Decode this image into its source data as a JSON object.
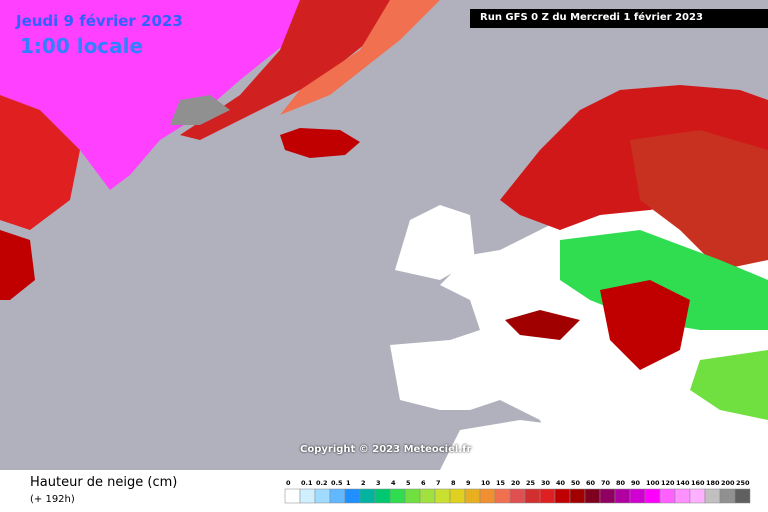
{
  "header": {
    "date": "Jeudi 9 février 2023",
    "time": "1:00 locale",
    "run": "Run GFS 0 Z du Mercredi 1 février 2023"
  },
  "copyright": "Copyright © 2023 Meteociel.fr",
  "legend": {
    "title": "Hauteur de neige (cm)",
    "subtitle": "(+ 192h)",
    "labels": [
      "0",
      "0.1",
      "0.2",
      "0.5",
      "1",
      "2",
      "3",
      "4",
      "5",
      "6",
      "7",
      "8",
      "9",
      "10",
      "15",
      "20",
      "25",
      "30",
      "40",
      "50",
      "60",
      "70",
      "80",
      "90",
      "100",
      "120",
      "140",
      "160",
      "180",
      "200",
      "250"
    ],
    "colors": [
      "#ffffff",
      "#d0f0ff",
      "#a0dcff",
      "#60b8ff",
      "#2090ff",
      "#00b4a0",
      "#00c870",
      "#30dc50",
      "#70e040",
      "#a0e040",
      "#c8e030",
      "#e0d020",
      "#e8b020",
      "#f09030",
      "#f07050",
      "#e05050",
      "#d03030",
      "#e02020",
      "#c00000",
      "#a00000",
      "#800020",
      "#900060",
      "#b000a0",
      "#d000d0",
      "#ff00ff",
      "#ff60ff",
      "#ff90ff",
      "#ffb0ff",
      "#c0c0c0",
      "#909090",
      "#606060"
    ]
  }
}
